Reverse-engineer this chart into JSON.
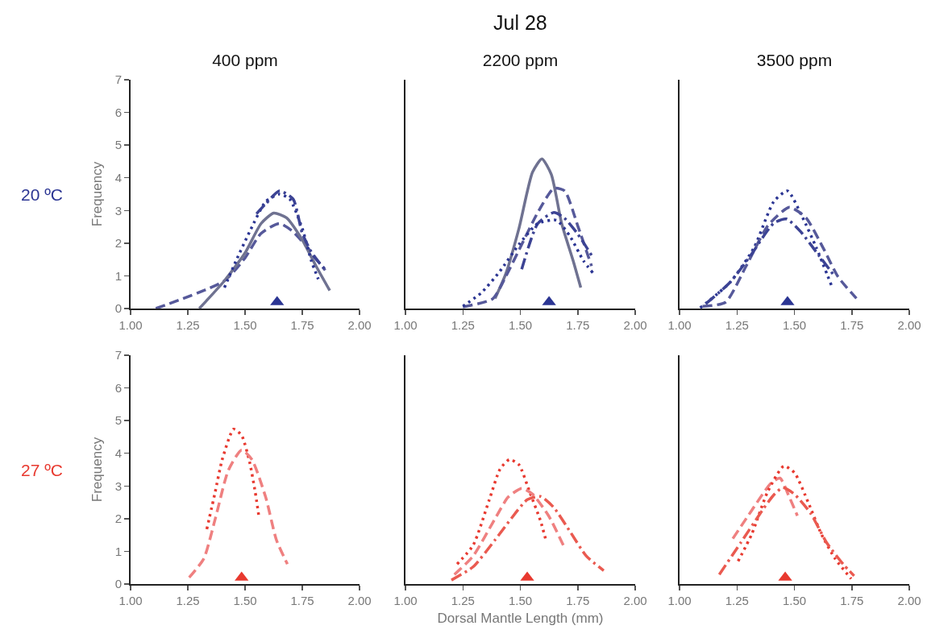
{
  "chart_data": [
    {
      "type": "line",
      "title": "400 ppm",
      "ylabel": "Frequency",
      "annotations": [
        "20 ºC"
      ],
      "xlim": [
        1,
        2
      ],
      "ylim": [
        0,
        7
      ],
      "xticks": [
        {
          "value": 1,
          "label": "1.00"
        },
        {
          "value": 1.25,
          "label": "1.25"
        },
        {
          "value": 1.5,
          "label": "1.50"
        },
        {
          "value": 1.75,
          "label": "1.75"
        },
        {
          "value": 2,
          "label": "2.00"
        }
      ],
      "yticks": [
        0,
        1,
        2,
        3,
        4,
        5,
        6,
        7
      ],
      "grid": false,
      "series": [
        {
          "color": "#56599a",
          "line_style": "dashed",
          "x": [
            1.11,
            1.41,
            1.5,
            1.57,
            1.65,
            1.71,
            1.78,
            1.85
          ],
          "values": [
            0,
            0.85,
            1.55,
            2.3,
            2.6,
            2.35,
            1.8,
            1.17
          ]
        },
        {
          "color": "#6f7291",
          "line_style": "solid",
          "x": [
            1.3,
            1.41,
            1.5,
            1.57,
            1.625,
            1.68,
            1.75,
            1.81,
            1.87
          ],
          "values": [
            0,
            0.85,
            1.7,
            2.6,
            2.92,
            2.78,
            2.1,
            1.3,
            0.55
          ]
        },
        {
          "color": "#2b3593",
          "line_style": "dotted",
          "x": [
            1.41,
            1.46,
            1.52,
            1.59,
            1.65,
            1.695,
            1.75,
            1.79,
            1.82
          ],
          "values": [
            0.64,
            1.45,
            2.35,
            3.27,
            3.5,
            3.35,
            2.45,
            1.45,
            0.9
          ]
        },
        {
          "color": "#3c4394",
          "line_style": "dashdot",
          "x": [
            1.55,
            1.59,
            1.65,
            1.71,
            1.75,
            1.8,
            1.85
          ],
          "values": [
            2.9,
            3.2,
            3.6,
            3.35,
            2.3,
            1.6,
            1.2
          ]
        },
        {
          "type": "scatter",
          "color": "#2b3593",
          "marker": "triangle",
          "x": [
            1.64
          ],
          "values": [
            0.2
          ]
        }
      ]
    },
    {
      "type": "line",
      "title": "2200 ppm",
      "annotations": [
        "Jul 28"
      ],
      "xlim": [
        1,
        2
      ],
      "ylim": [
        0,
        7
      ],
      "xticks": [
        {
          "value": 1,
          "label": "1.00"
        },
        {
          "value": 1.25,
          "label": "1.25"
        },
        {
          "value": 1.5,
          "label": "1.50"
        },
        {
          "value": 1.75,
          "label": "1.75"
        },
        {
          "value": 2,
          "label": "2.00"
        }
      ],
      "yticks": [
        0,
        1,
        2,
        3,
        4,
        5,
        6,
        7
      ],
      "tick_labels": "x",
      "grid": false,
      "series": [
        {
          "color": "#6f7291",
          "line_style": "solid",
          "x": [
            1.39,
            1.436,
            1.494,
            1.553,
            1.594,
            1.635,
            1.68,
            1.73,
            1.763
          ],
          "values": [
            0.31,
            1.05,
            2.45,
            4.17,
            4.58,
            4.1,
            2.6,
            1.46,
            0.64
          ]
        },
        {
          "color": "#56599a",
          "line_style": "dashed",
          "x": [
            1.25,
            1.38,
            1.436,
            1.506,
            1.576,
            1.646,
            1.693,
            1.75,
            1.81
          ],
          "values": [
            0.05,
            0.3,
            0.97,
            1.96,
            2.94,
            3.68,
            3.6,
            2.53,
            1.3
          ]
        },
        {
          "color": "#3c4394",
          "line_style": "dashdot",
          "x": [
            1.506,
            1.576,
            1.646,
            1.69,
            1.75,
            1.81
          ],
          "values": [
            1.2,
            2.6,
            2.94,
            2.78,
            2.28,
            1.63
          ]
        },
        {
          "color": "#2b3593",
          "line_style": "dotted",
          "x": [
            1.25,
            1.33,
            1.41,
            1.494,
            1.576,
            1.658,
            1.717,
            1.775,
            1.816
          ],
          "values": [
            0.07,
            0.48,
            1.13,
            1.96,
            2.6,
            2.7,
            2.2,
            1.46,
            1.09
          ]
        },
        {
          "type": "scatter",
          "color": "#2b3593",
          "marker": "triangle",
          "x": [
            1.625
          ],
          "values": [
            0.2
          ]
        }
      ]
    },
    {
      "type": "line",
      "title": "3500 ppm",
      "xlim": [
        1,
        2
      ],
      "ylim": [
        0,
        7
      ],
      "xticks": [
        {
          "value": 1,
          "label": "1.00"
        },
        {
          "value": 1.25,
          "label": "1.25"
        },
        {
          "value": 1.5,
          "label": "1.50"
        },
        {
          "value": 1.75,
          "label": "1.75"
        },
        {
          "value": 2,
          "label": "2.00"
        }
      ],
      "yticks": [
        0,
        1,
        2,
        3,
        4,
        5,
        6,
        7
      ],
      "tick_labels": "x",
      "grid": false,
      "series": [
        {
          "color": "#2b3593",
          "line_style": "dotted",
          "x": [
            1.09,
            1.22,
            1.325,
            1.41,
            1.47,
            1.536,
            1.595,
            1.665
          ],
          "values": [
            0.02,
            0.8,
            1.87,
            3.27,
            3.6,
            2.78,
            1.87,
            0.64
          ]
        },
        {
          "color": "#56599a",
          "line_style": "dashed",
          "x": [
            1.1,
            1.2,
            1.29,
            1.384,
            1.478,
            1.55,
            1.63,
            1.69,
            1.77
          ],
          "values": [
            0.07,
            0.19,
            1.3,
            2.53,
            3.1,
            2.78,
            1.79,
            0.97,
            0.31
          ]
        },
        {
          "color": "#3c4394",
          "line_style": "dashdot",
          "x": [
            1.115,
            1.22,
            1.31,
            1.41,
            1.466,
            1.525,
            1.606,
            1.677
          ],
          "values": [
            0.15,
            0.8,
            1.63,
            2.61,
            2.74,
            2.37,
            1.63,
            0.97
          ]
        },
        {
          "type": "scatter",
          "color": "#2b3593",
          "marker": "triangle",
          "x": [
            1.47
          ],
          "values": [
            0.2
          ]
        }
      ]
    },
    {
      "type": "line",
      "ylabel": "Frequency",
      "annotations": [
        "27 ºC"
      ],
      "xlim": [
        1,
        2
      ],
      "ylim": [
        0,
        7
      ],
      "xticks": [
        {
          "value": 1,
          "label": "1.00"
        },
        {
          "value": 1.25,
          "label": "1.25"
        },
        {
          "value": 1.5,
          "label": "1.50"
        },
        {
          "value": 1.75,
          "label": "1.75"
        },
        {
          "value": 2,
          "label": "2.00"
        }
      ],
      "yticks": [
        0,
        1,
        2,
        3,
        4,
        5,
        6,
        7
      ],
      "grid": false,
      "series": [
        {
          "color": "#e8392f",
          "line_style": "dotted",
          "x": [
            1.333,
            1.37,
            1.4,
            1.45,
            1.485,
            1.52,
            1.544,
            1.56
          ],
          "values": [
            1.68,
            2.83,
            3.8,
            4.74,
            4.55,
            3.73,
            2.83,
            2.09
          ]
        },
        {
          "color": "#ef8080",
          "line_style": "dashed",
          "x": [
            1.256,
            1.32,
            1.37,
            1.427,
            1.485,
            1.53,
            1.59,
            1.637,
            1.685
          ],
          "values": [
            0.2,
            0.78,
            2.0,
            3.48,
            4.1,
            3.81,
            2.66,
            1.35,
            0.61
          ]
        },
        {
          "type": "scatter",
          "color": "#e8392f",
          "marker": "triangle",
          "x": [
            1.485
          ],
          "values": [
            0.2
          ]
        }
      ]
    },
    {
      "type": "line",
      "xlabel": "Dorsal Mantle Length (mm)",
      "xlim": [
        1,
        2
      ],
      "ylim": [
        0,
        7
      ],
      "xticks": [
        {
          "value": 1,
          "label": "1.00"
        },
        {
          "value": 1.25,
          "label": "1.25"
        },
        {
          "value": 1.5,
          "label": "1.50"
        },
        {
          "value": 1.75,
          "label": "1.75"
        },
        {
          "value": 2,
          "label": "2.00"
        }
      ],
      "yticks": [
        0,
        1,
        2,
        3,
        4,
        5,
        6,
        7
      ],
      "tick_labels": "x",
      "grid": false,
      "series": [
        {
          "color": "#e8392f",
          "line_style": "dotted",
          "x": [
            1.225,
            1.295,
            1.365,
            1.412,
            1.453,
            1.494,
            1.54,
            1.588,
            1.611
          ],
          "values": [
            0.61,
            1.19,
            2.58,
            3.52,
            3.81,
            3.65,
            2.83,
            1.93,
            1.35
          ]
        },
        {
          "color": "#ef8080",
          "line_style": "dashed",
          "x": [
            1.213,
            1.295,
            1.39,
            1.447,
            1.506,
            1.553,
            1.623,
            1.687
          ],
          "values": [
            0.29,
            0.86,
            2.0,
            2.66,
            2.93,
            2.75,
            2.09,
            1.19
          ]
        },
        {
          "color": "#ea5a50",
          "line_style": "dashdot",
          "x": [
            1.2,
            1.295,
            1.39,
            1.46,
            1.53,
            1.588,
            1.646,
            1.717,
            1.787,
            1.863
          ],
          "values": [
            0.12,
            0.53,
            1.35,
            2.0,
            2.58,
            2.68,
            2.34,
            1.6,
            0.86,
            0.41
          ]
        },
        {
          "type": "scatter",
          "color": "#e8392f",
          "marker": "triangle",
          "x": [
            1.53
          ],
          "values": [
            0.2
          ]
        }
      ]
    },
    {
      "type": "line",
      "xlim": [
        1,
        2
      ],
      "ylim": [
        0,
        7
      ],
      "xticks": [
        {
          "value": 1,
          "label": "1.00"
        },
        {
          "value": 1.25,
          "label": "1.25"
        },
        {
          "value": 1.5,
          "label": "1.50"
        },
        {
          "value": 1.75,
          "label": "1.75"
        },
        {
          "value": 2,
          "label": "2.00"
        }
      ],
      "yticks": [
        0,
        1,
        2,
        3,
        4,
        5,
        6,
        7
      ],
      "tick_labels": "x",
      "grid": false,
      "series": [
        {
          "color": "#ef8080",
          "line_style": "dashed",
          "x": [
            1.232,
            1.314,
            1.396,
            1.437,
            1.478,
            1.513
          ],
          "values": [
            1.39,
            2.25,
            3.07,
            3.24,
            2.66,
            2.09
          ]
        },
        {
          "color": "#e8392f",
          "line_style": "dotted",
          "x": [
            1.255,
            1.314,
            1.384,
            1.454,
            1.501,
            1.56,
            1.618,
            1.677,
            1.747
          ],
          "values": [
            0.7,
            1.52,
            2.83,
            3.61,
            3.4,
            2.5,
            1.52,
            0.78,
            0.16
          ]
        },
        {
          "color": "#ea5a50",
          "line_style": "dashdot",
          "x": [
            1.173,
            1.267,
            1.36,
            1.407,
            1.449,
            1.5,
            1.57,
            1.64,
            1.712,
            1.76
          ],
          "values": [
            0.29,
            1.27,
            2.25,
            2.7,
            2.95,
            2.75,
            2.17,
            1.27,
            0.61,
            0.25
          ]
        },
        {
          "type": "scatter",
          "color": "#e8392f",
          "marker": "triangle",
          "x": [
            1.46
          ],
          "values": [
            0.2
          ]
        }
      ]
    }
  ]
}
